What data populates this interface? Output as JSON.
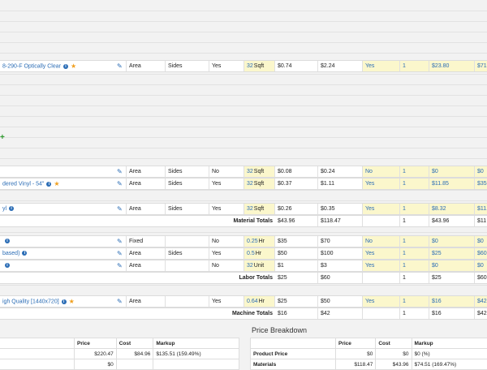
{
  "rows": [
    {
      "name": "8-290-F Optically Clear",
      "info": true,
      "star": true,
      "type": "Area",
      "sides": "Sides",
      "d": "Yes",
      "qty": "32",
      "unit": "Sqft",
      "cost": "$0.74",
      "price": "$2.24",
      "inc": "Yes",
      "mult": "1",
      "total": "$23.80",
      "extra": "$71."
    },
    {
      "name": "",
      "info": false,
      "star": false,
      "type": "Area",
      "sides": "Sides",
      "d": "No",
      "qty": "32",
      "unit": "Sqft",
      "cost": "$0.08",
      "price": "$0.24",
      "inc": "No",
      "mult": "1",
      "total": "$0",
      "extra": "$0"
    },
    {
      "name": "dered Vinyl - 54\"",
      "info": true,
      "star": true,
      "type": "Area",
      "sides": "Sides",
      "d": "Yes",
      "qty": "32",
      "unit": "Sqft",
      "cost": "$0.37",
      "price": "$1.11",
      "inc": "Yes",
      "mult": "1",
      "total": "$11.85",
      "extra": "$35."
    },
    {
      "name": "yl",
      "info": true,
      "star": false,
      "type": "Area",
      "sides": "Sides",
      "d": "Yes",
      "qty": "32",
      "unit": "Sqft",
      "cost": "$0.26",
      "price": "$0.35",
      "inc": "Yes",
      "mult": "1",
      "total": "$8.32",
      "extra": "$11."
    },
    {
      "name": "",
      "info": true,
      "star": false,
      "type": "Fixed",
      "sides": "",
      "d": "No",
      "qty": "0.25",
      "unit": "Hr",
      "cost": "$35",
      "price": "$70",
      "inc": "No",
      "mult": "1",
      "total": "$0",
      "extra": "$0"
    },
    {
      "name": "based)",
      "info": true,
      "star": false,
      "type": "Area",
      "sides": "Sides",
      "d": "Yes",
      "qty": "0.5",
      "unit": "Hr",
      "cost": "$50",
      "price": "$100",
      "inc": "Yes",
      "mult": "1",
      "total": "$25",
      "extra": "$60"
    },
    {
      "name": "",
      "info": true,
      "star": false,
      "type": "Area",
      "sides": "",
      "d": "No",
      "qty": "32",
      "unit": "Unit",
      "cost": "$1",
      "price": "$3",
      "inc": "Yes",
      "mult": "1",
      "total": "$0",
      "extra": "$0"
    },
    {
      "name": "igh Quality [1440x720]",
      "info": true,
      "star": true,
      "type": "Area",
      "sides": "",
      "d": "Yes",
      "qty": "0.64",
      "unit": "Hr",
      "cost": "$25",
      "price": "$50",
      "inc": "Yes",
      "mult": "1",
      "total": "$16",
      "extra": "$42"
    }
  ],
  "totals": [
    {
      "label": "Material Totals",
      "cost": "$43.96",
      "price": "$118.47",
      "mult": "1",
      "total": "$43.96",
      "extra": "$11"
    },
    {
      "label": "Labor Totals",
      "cost": "$25",
      "price": "$60",
      "mult": "1",
      "total": "$25",
      "extra": "$60"
    },
    {
      "label": "Machine Totals",
      "cost": "$16",
      "price": "$42",
      "mult": "1",
      "total": "$16",
      "extra": "$42"
    }
  ],
  "left_table": {
    "headers": [
      "Price",
      "Cost",
      "Markup"
    ],
    "rows": [
      [
        "$220.47",
        "$84.96",
        "$135.51 (159.49%)"
      ],
      [
        "$0",
        "",
        ""
      ]
    ]
  },
  "price_breakdown": {
    "title": "Price Breakdown",
    "headers": [
      "",
      "Price",
      "Cost",
      "Markup"
    ],
    "rows": [
      [
        "Product Price",
        "$0",
        "$0",
        "$0 (%)"
      ],
      [
        "Materials",
        "$118.47",
        "$43.96",
        "$74.51 (169.47%)"
      ]
    ]
  },
  "icons": {
    "edit": "pencil-icon",
    "info": "info-icon",
    "favorite": "star-icon",
    "add": "plus-icon"
  },
  "colors": {
    "accent": "#2a6cb5",
    "highlight": "#fbf7cc",
    "star": "#f0a020",
    "add": "#2e9a2e"
  }
}
